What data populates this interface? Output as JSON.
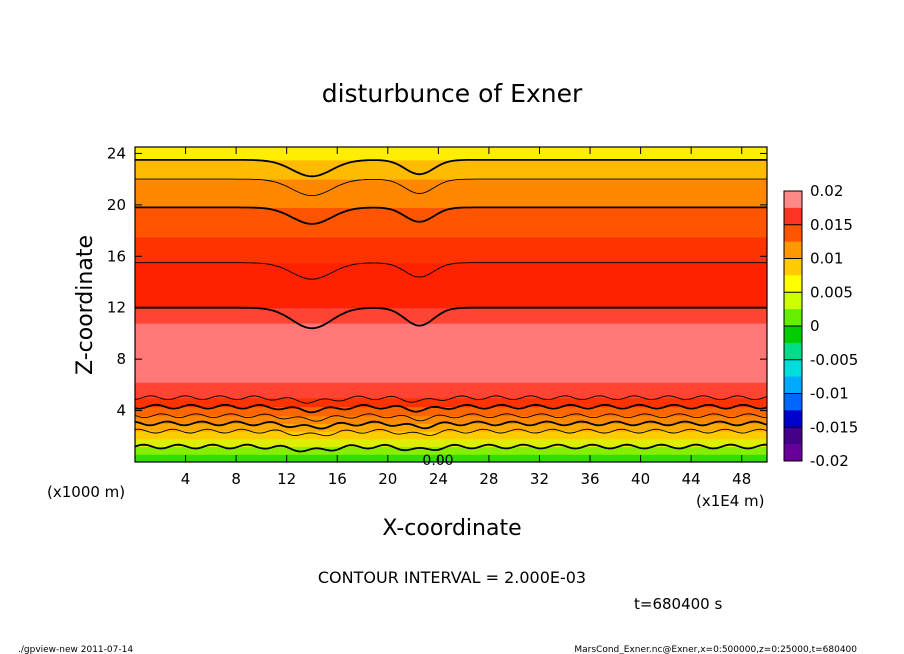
{
  "chart_data": {
    "type": "heatmap",
    "title": "disturbunce of Exner",
    "xlabel": "X-coordinate",
    "ylabel": "Z-coordinate",
    "x_unit_note": "(x1E4 m)",
    "y_unit_note": "(x1000 m)",
    "x_ticks": [
      4,
      8,
      12,
      16,
      20,
      24,
      28,
      32,
      36,
      40,
      44,
      48
    ],
    "y_ticks": [
      4,
      8,
      12,
      16,
      20,
      24
    ],
    "xlim": [
      0,
      50
    ],
    "ylim": [
      0,
      24.5
    ],
    "colorbar_ticks": [
      "0.02",
      "0.015",
      "0.01",
      "0.005",
      "0",
      "-0.005",
      "-0.01",
      "-0.015",
      "-0.02"
    ],
    "colorbar_range": [
      -0.02,
      0.02
    ],
    "contour_interval_text": "CONTOUR INTERVAL = 2.000E-03",
    "zero_label": "0.00",
    "bands": [
      {
        "z": [
          0,
          0.6
        ],
        "value": 0.0005,
        "color": "#33dd00"
      },
      {
        "z": [
          0.6,
          1.2
        ],
        "value": 0.0025,
        "color": "#88ee00"
      },
      {
        "z": [
          1.2,
          1.8
        ],
        "value": 0.0045,
        "color": "#ddee00"
      },
      {
        "z": [
          1.8,
          2.4
        ],
        "value": 0.0065,
        "color": "#ffcc00"
      },
      {
        "z": [
          2.4,
          3.0
        ],
        "value": 0.0085,
        "color": "#ffaa00"
      },
      {
        "z": [
          3.0,
          3.6
        ],
        "value": 0.0105,
        "color": "#ff8800"
      },
      {
        "z": [
          3.6,
          4.3
        ],
        "value": 0.0125,
        "color": "#ff6600"
      },
      {
        "z": [
          4.3,
          5.0
        ],
        "value": 0.0145,
        "color": "#ff3300"
      },
      {
        "z": [
          5.0,
          6.2
        ],
        "value": 0.0165,
        "color": "#ff4433"
      },
      {
        "z": [
          6.2,
          10.8
        ],
        "value": 0.019,
        "color": "#ff7777"
      },
      {
        "z": [
          10.8,
          12.0
        ],
        "value": 0.0175,
        "color": "#ff4433"
      },
      {
        "z": [
          12.0,
          15.5
        ],
        "value": 0.0165,
        "color": "#ff2200"
      },
      {
        "z": [
          15.5,
          17.5
        ],
        "value": 0.0145,
        "color": "#ff3300"
      },
      {
        "z": [
          17.5,
          19.8
        ],
        "value": 0.0125,
        "color": "#ff5500"
      },
      {
        "z": [
          19.8,
          22.0
        ],
        "value": 0.0095,
        "color": "#ff8800"
      },
      {
        "z": [
          22.0,
          23.5
        ],
        "value": 0.0075,
        "color": "#ffbb00"
      },
      {
        "z": [
          23.5,
          24.5
        ],
        "value": 0.0055,
        "color": "#ffee00"
      }
    ],
    "colorbar_colors": [
      "#ff8888",
      "#ff3322",
      "#ff5500",
      "#ff9900",
      "#ffcc00",
      "#ffff00",
      "#ccff00",
      "#66ee00",
      "#00cc00",
      "#00dd88",
      "#00dddd",
      "#00aaff",
      "#0066ff",
      "#0000cc",
      "#440088",
      "#660099"
    ],
    "contours_z": [
      1.2,
      2.4,
      3.0,
      3.6,
      4.3,
      5.0,
      12.0,
      15.5,
      19.8,
      22.0,
      23.5
    ],
    "contour_dips": [
      {
        "x": 14.0,
        "depth": 1.6,
        "width": 2.2
      },
      {
        "x": 22.5,
        "depth": 1.4,
        "width": 1.6
      }
    ]
  },
  "footer": {
    "time_label": "t=680400 s",
    "left_note": "./gpview-new  2011-07-14",
    "right_note": "MarsCond_Exner.nc@Exner,x=0:500000,z=0:25000,t=680400"
  }
}
